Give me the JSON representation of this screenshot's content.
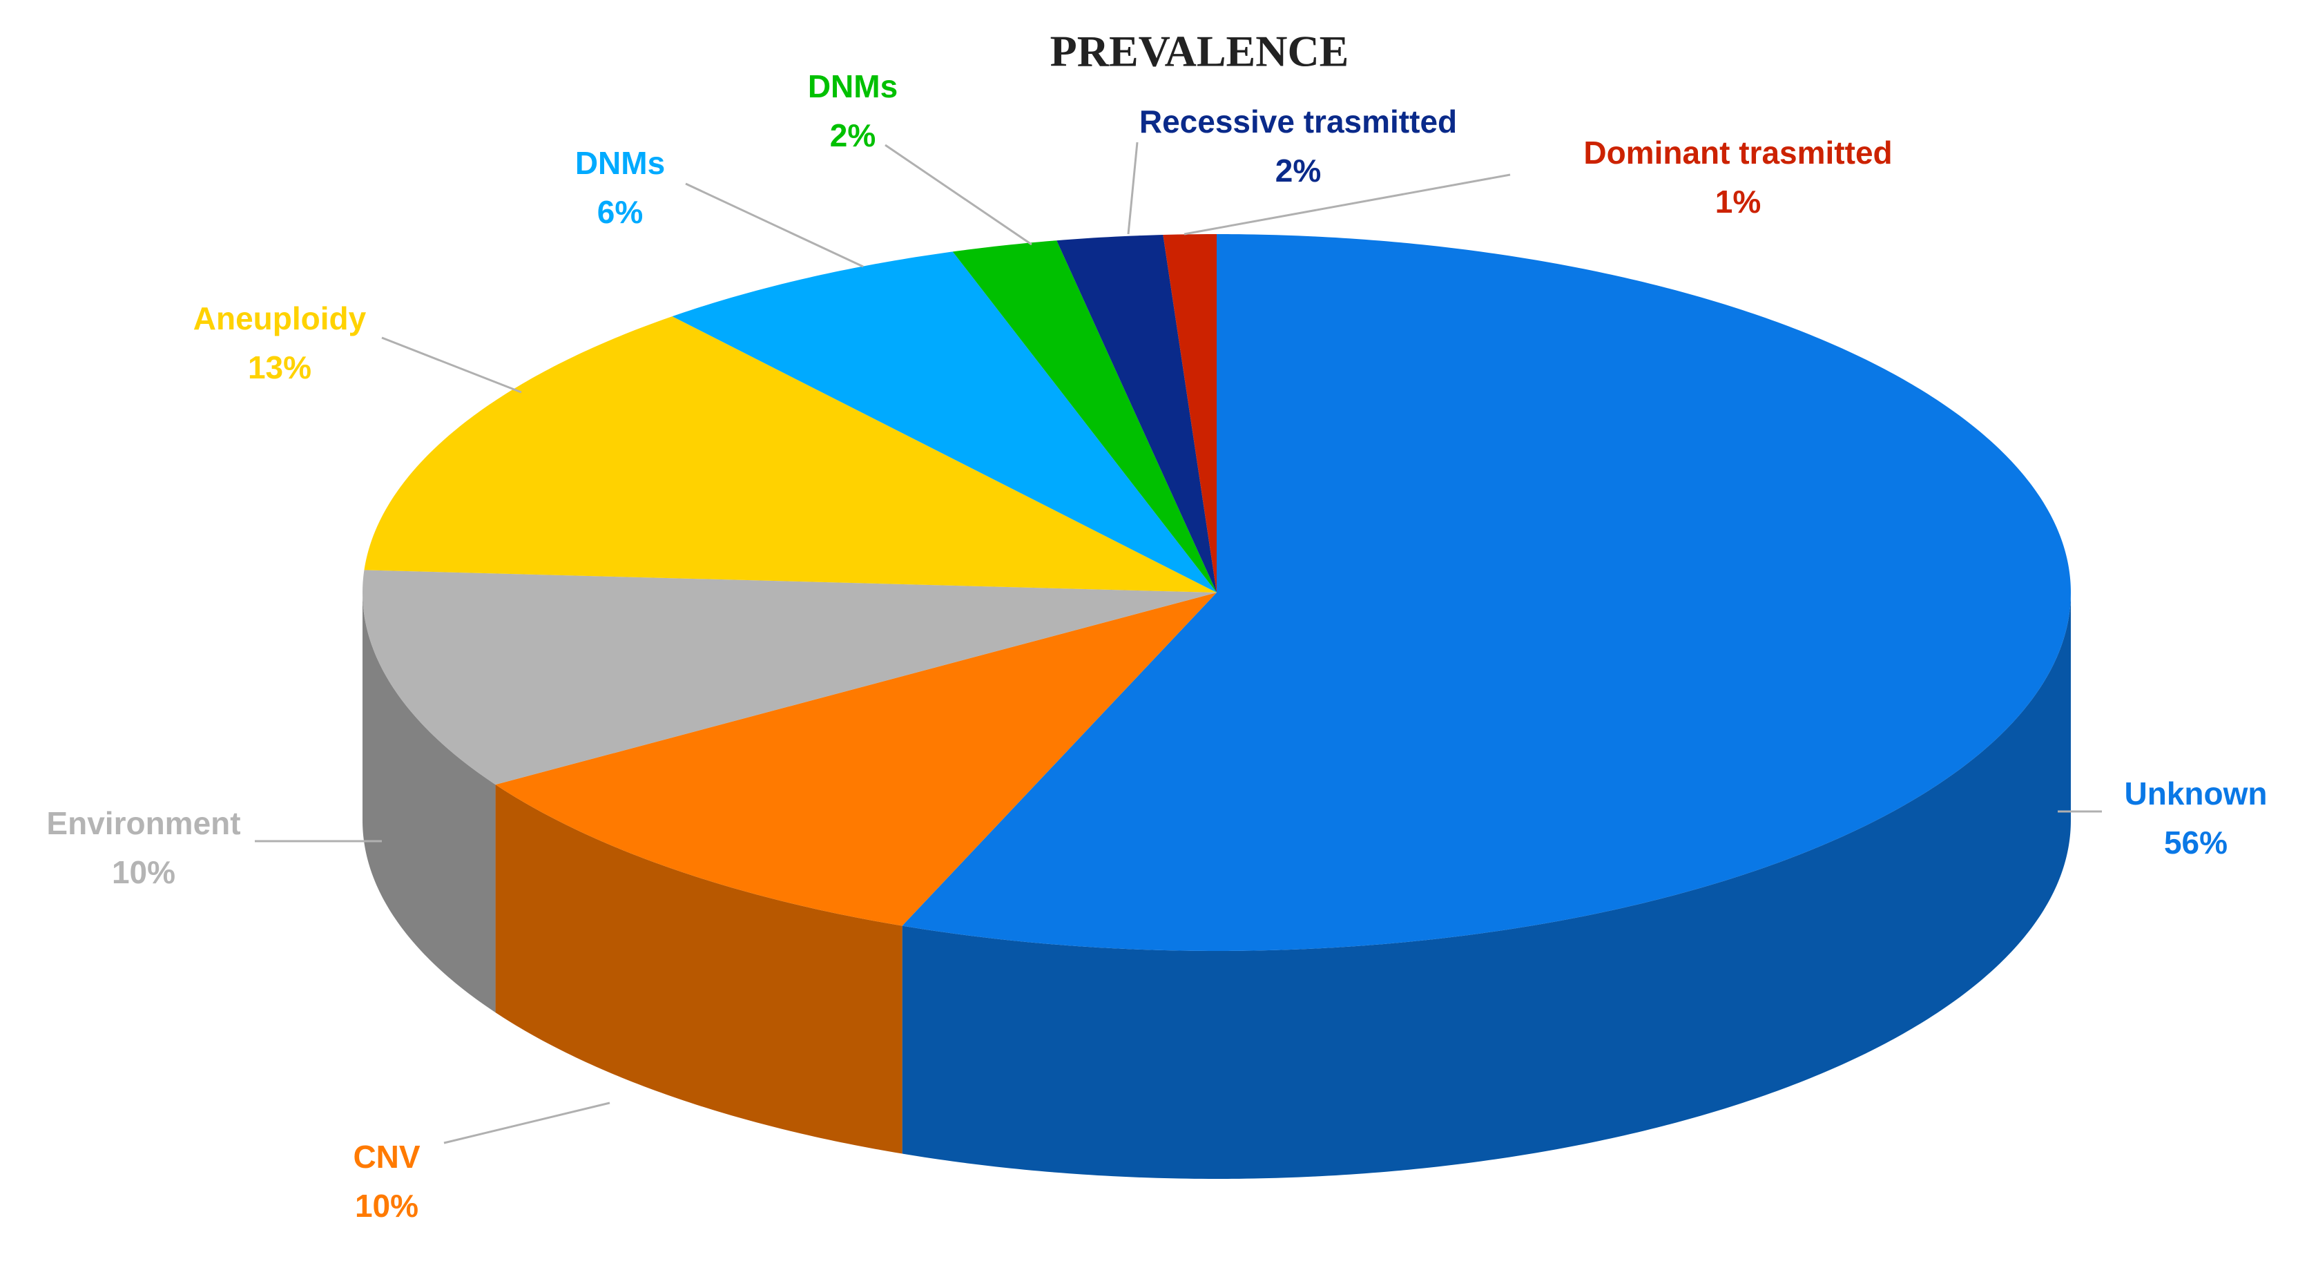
{
  "chart_data": {
    "type": "pie",
    "title": "PREVALENCE",
    "categories": [
      "Unknown",
      "CNV",
      "Environment",
      "Aneuploidy",
      "DNMs",
      "DNMs",
      "Recessive trasmitted",
      "Dominant trasmitted"
    ],
    "values": [
      56,
      10,
      10,
      13,
      6,
      2,
      2,
      1
    ],
    "value_labels": [
      "56%",
      "10%",
      "10%",
      "13%",
      "6%",
      "2%",
      "2%",
      "1%"
    ],
    "colors": [
      "#0a78e6",
      "#ff7a00",
      "#b4b4b4",
      "#ffd200",
      "#00aaff",
      "#00c000",
      "#0a2a8a",
      "#cc2200"
    ]
  }
}
